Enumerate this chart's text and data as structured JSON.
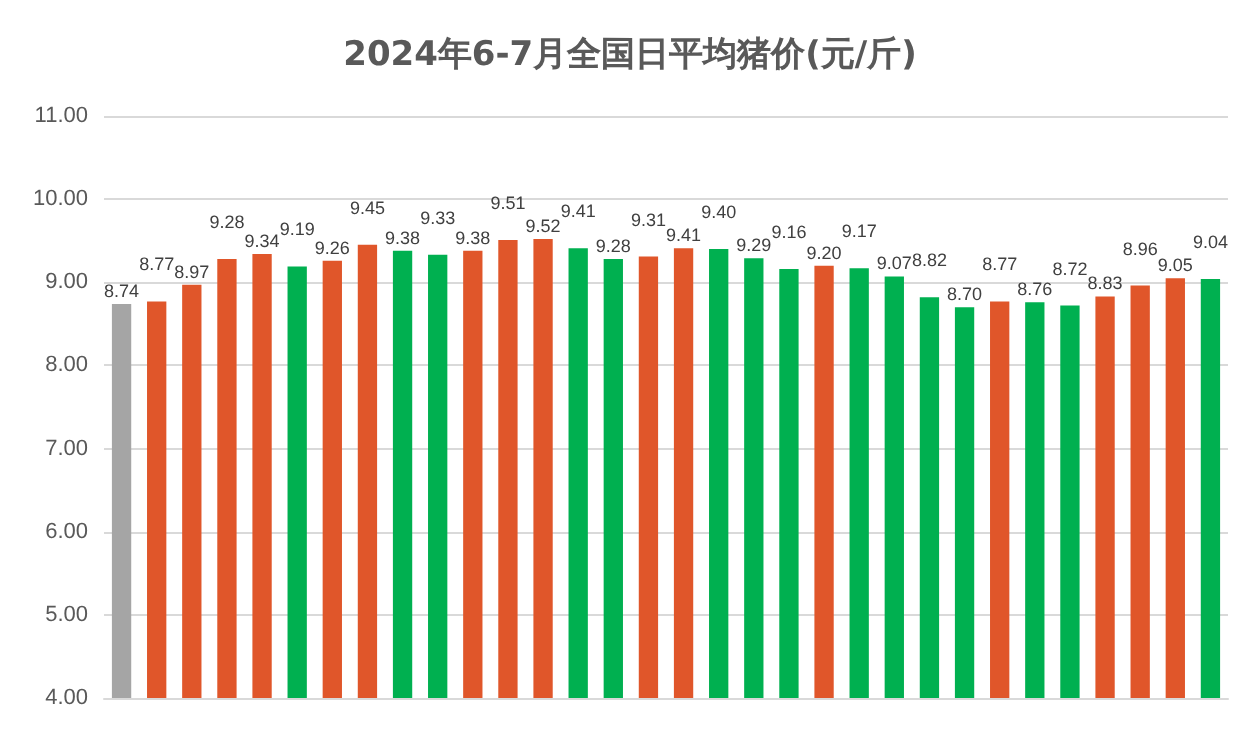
{
  "chart_data": {
    "type": "bar",
    "title": "2024年6-7月全国日平均猪价(元/斤)",
    "categories": [
      null,
      null,
      null,
      null,
      null,
      null,
      null,
      null,
      null,
      null,
      null,
      null,
      null,
      null,
      null,
      null,
      null,
      null,
      null,
      null,
      null,
      null,
      null,
      null,
      null,
      null,
      null,
      null,
      null,
      null,
      null,
      null
    ],
    "values": [
      8.74,
      8.77,
      8.97,
      9.28,
      9.34,
      9.19,
      9.26,
      9.45,
      9.38,
      9.33,
      9.38,
      9.51,
      9.52,
      9.41,
      9.28,
      9.31,
      9.41,
      9.4,
      9.29,
      9.16,
      9.2,
      9.17,
      9.07,
      8.82,
      8.7,
      8.77,
      8.76,
      8.72,
      8.83,
      8.96,
      9.05,
      9.04
    ],
    "value_labels": [
      "8.74",
      "8.77",
      "8.97",
      "9.28",
      "9.34",
      "9.19",
      "9.26",
      "9.45",
      "9.38",
      "9.33",
      "9.38",
      "9.51",
      "9.52",
      "9.41",
      "9.28",
      "9.31",
      "9.41",
      "9.40",
      "9.29",
      "9.16",
      "9.20",
      "9.17",
      "9.07",
      "8.82",
      "8.70",
      "8.77",
      "8.76",
      "8.72",
      "8.83",
      "8.96",
      "9.05",
      "9.04"
    ],
    "colors": [
      "#a5a5a5",
      "#e0562a",
      "#e0562a",
      "#e0562a",
      "#e0562a",
      "#00b050",
      "#e0562a",
      "#e0562a",
      "#00b050",
      "#00b050",
      "#e0562a",
      "#e0562a",
      "#e0562a",
      "#00b050",
      "#00b050",
      "#e0562a",
      "#e0562a",
      "#00b050",
      "#00b050",
      "#00b050",
      "#e0562a",
      "#00b050",
      "#00b050",
      "#00b050",
      "#00b050",
      "#e0562a",
      "#00b050",
      "#00b050",
      "#e0562a",
      "#e0562a",
      "#e0562a",
      "#00b050"
    ],
    "ylim": [
      4,
      11
    ],
    "yticks": [
      {
        "value": 4,
        "label": "4.00"
      },
      {
        "value": 5,
        "label": "5.00"
      },
      {
        "value": 6,
        "label": "6.00"
      },
      {
        "value": 7,
        "label": "7.00"
      },
      {
        "value": 8,
        "label": "8.00"
      },
      {
        "value": 9,
        "label": "9.00"
      },
      {
        "value": 10,
        "label": "10.00"
      },
      {
        "value": 11,
        "label": "11.00"
      }
    ],
    "grid": true
  }
}
